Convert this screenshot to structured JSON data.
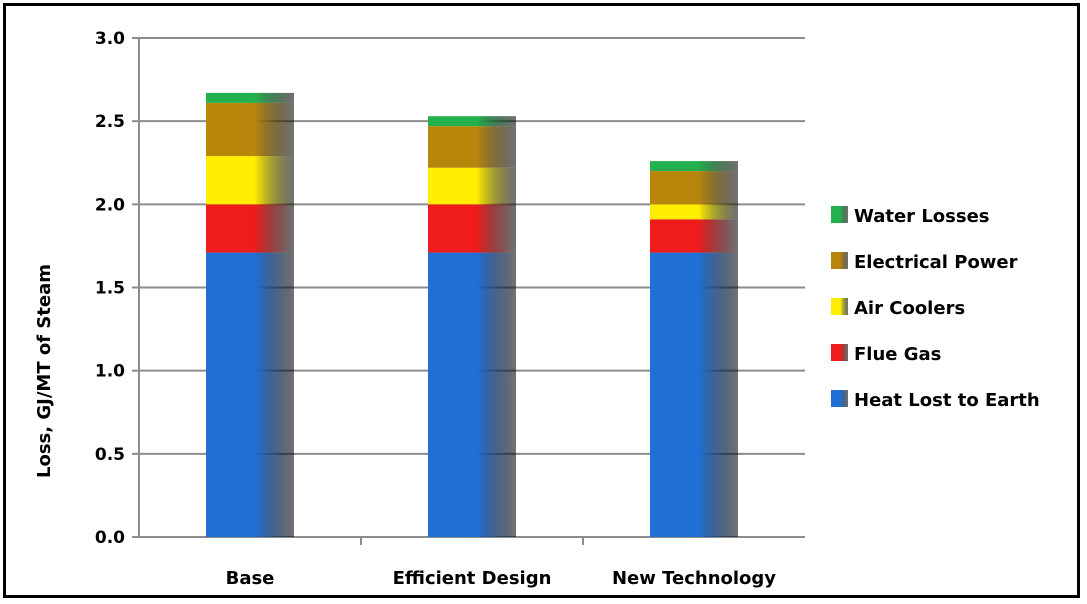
{
  "chart_data": {
    "type": "bar",
    "stacked": true,
    "categories": [
      "Base",
      "Efficient Design",
      "New Technology"
    ],
    "ylabel": "Loss, GJ/MT of Steam",
    "xlabel": "",
    "ylim": [
      0,
      3.0
    ],
    "yticks": [
      "0.0",
      "0.5",
      "1.0",
      "1.5",
      "2.0",
      "2.5",
      "3.0"
    ],
    "grid": true,
    "legend_position": "right",
    "series": [
      {
        "name": "Heat Lost to Earth",
        "color": "#1f6fd6",
        "values": [
          1.71,
          1.71,
          1.71
        ]
      },
      {
        "name": "Flue Gas",
        "color": "#ee1c1c",
        "values": [
          0.29,
          0.29,
          0.2
        ]
      },
      {
        "name": "Air Coolers",
        "color": "#ffee00",
        "values": [
          0.29,
          0.22,
          0.09
        ]
      },
      {
        "name": "Electrical Power",
        "color": "#b8860b",
        "values": [
          0.32,
          0.25,
          0.2
        ]
      },
      {
        "name": "Water Losses",
        "color": "#22b14c",
        "values": [
          0.06,
          0.06,
          0.06
        ]
      }
    ]
  }
}
